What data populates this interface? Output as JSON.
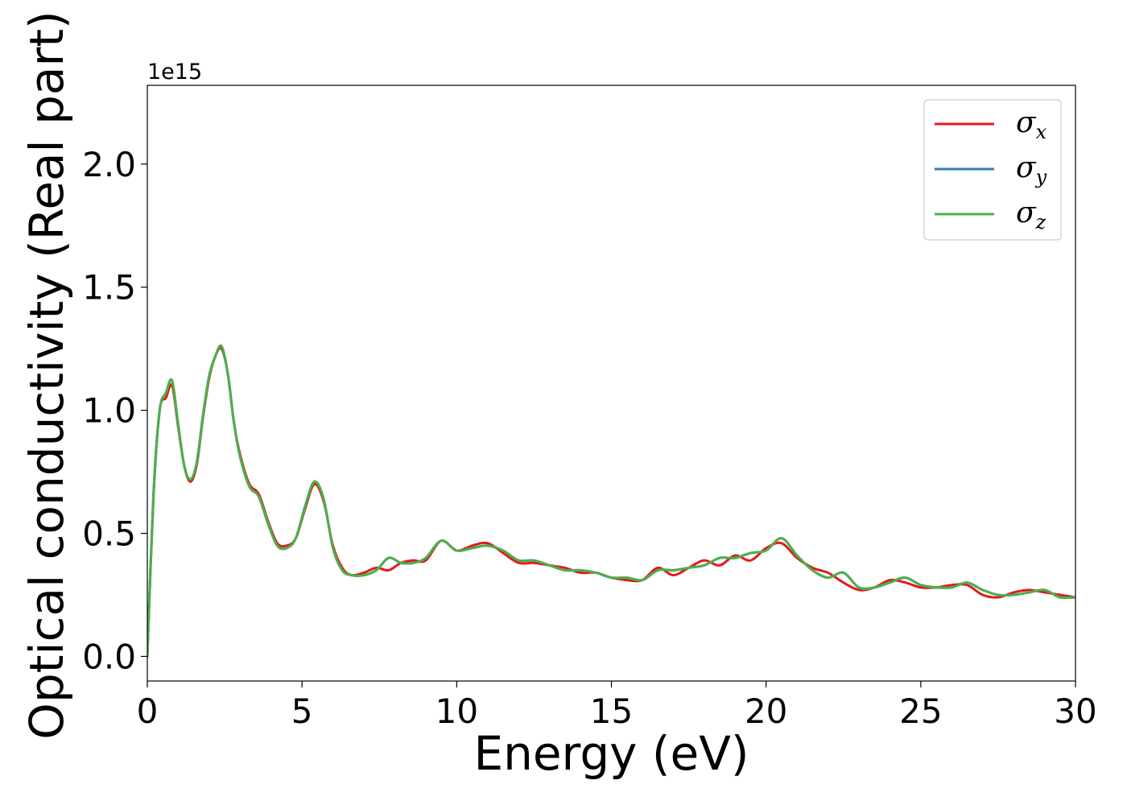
{
  "chart_data": {
    "type": "line",
    "xlabel": "Energy (eV)",
    "ylabel": "Optical conductivity (Real part)",
    "y_offset_text": "1e15",
    "xlim": [
      0,
      30
    ],
    "ylim": [
      -0.1,
      2.32
    ],
    "y_scale": 1000000000000000.0,
    "xticks": [
      0,
      5,
      10,
      15,
      20,
      25,
      30
    ],
    "xtick_labels": [
      "0",
      "5",
      "10",
      "15",
      "20",
      "25",
      "30"
    ],
    "yticks": [
      0.0,
      0.5,
      1.0,
      1.5,
      2.0
    ],
    "ytick_labels": [
      "0.0",
      "0.5",
      "1.0",
      "1.5",
      "2.0"
    ],
    "grid": false,
    "legend_position": "top-right",
    "series": [
      {
        "name": "σx",
        "symbol": "σ",
        "subscript": "x",
        "color": "#e41a1c",
        "x": [
          0,
          0.2,
          0.4,
          0.6,
          0.8,
          1.0,
          1.2,
          1.4,
          1.6,
          1.8,
          2.0,
          2.2,
          2.4,
          2.6,
          2.8,
          3.0,
          3.3,
          3.6,
          3.9,
          4.2,
          4.5,
          4.8,
          5.1,
          5.4,
          5.7,
          6.0,
          6.3,
          6.6,
          7.0,
          7.4,
          7.8,
          8.2,
          8.6,
          9.0,
          9.5,
          10.0,
          10.5,
          11.0,
          11.5,
          12.0,
          12.5,
          13.0,
          13.5,
          14.0,
          14.5,
          15.0,
          15.5,
          16.0,
          16.5,
          17.0,
          17.5,
          18.0,
          18.5,
          19.0,
          19.5,
          20.0,
          20.5,
          21.0,
          21.5,
          22.0,
          22.5,
          23.0,
          23.5,
          24.0,
          24.5,
          25.0,
          25.5,
          26.0,
          26.5,
          27.0,
          27.5,
          28.0,
          28.5,
          29.0,
          29.5,
          30.0
        ],
        "y": [
          0.0,
          0.65,
          1.0,
          1.05,
          1.1,
          0.93,
          0.77,
          0.71,
          0.78,
          0.97,
          1.13,
          1.22,
          1.25,
          1.15,
          0.95,
          0.82,
          0.7,
          0.66,
          0.55,
          0.46,
          0.45,
          0.48,
          0.6,
          0.7,
          0.63,
          0.45,
          0.36,
          0.33,
          0.34,
          0.36,
          0.35,
          0.38,
          0.39,
          0.39,
          0.47,
          0.43,
          0.45,
          0.46,
          0.42,
          0.38,
          0.38,
          0.37,
          0.36,
          0.34,
          0.34,
          0.32,
          0.31,
          0.31,
          0.36,
          0.33,
          0.36,
          0.39,
          0.37,
          0.41,
          0.39,
          0.44,
          0.46,
          0.4,
          0.36,
          0.34,
          0.3,
          0.27,
          0.28,
          0.31,
          0.3,
          0.28,
          0.28,
          0.29,
          0.29,
          0.25,
          0.24,
          0.26,
          0.27,
          0.26,
          0.25,
          0.24
        ]
      },
      {
        "name": "σy",
        "symbol": "σ",
        "subscript": "y",
        "color": "#377eb8",
        "x": [
          0,
          0.2,
          0.4,
          0.6,
          0.8,
          1.0,
          1.2,
          1.4,
          1.6,
          1.8,
          2.0,
          2.2,
          2.4,
          2.6,
          2.8,
          3.0,
          3.3,
          3.6,
          3.9,
          4.2,
          4.5,
          4.8,
          5.1,
          5.4,
          5.7,
          6.0,
          6.3,
          6.6,
          7.0,
          7.4,
          7.8,
          8.2,
          8.6,
          9.0,
          9.5,
          10.0,
          10.5,
          11.0,
          11.5,
          12.0,
          12.5,
          13.0,
          13.5,
          14.0,
          14.5,
          15.0,
          15.5,
          16.0,
          16.5,
          17.0,
          17.5,
          18.0,
          18.5,
          19.0,
          19.5,
          20.0,
          20.5,
          21.0,
          21.5,
          22.0,
          22.5,
          23.0,
          23.5,
          24.0,
          24.5,
          25.0,
          25.5,
          26.0,
          26.5,
          27.0,
          27.5,
          28.0,
          28.5,
          29.0,
          29.5,
          30.0
        ],
        "y": [
          0.0,
          0.66,
          1.0,
          1.07,
          1.12,
          0.94,
          0.77,
          0.72,
          0.79,
          0.98,
          1.14,
          1.22,
          1.26,
          1.15,
          0.95,
          0.81,
          0.69,
          0.65,
          0.54,
          0.45,
          0.44,
          0.48,
          0.61,
          0.71,
          0.64,
          0.44,
          0.35,
          0.33,
          0.33,
          0.35,
          0.4,
          0.38,
          0.38,
          0.4,
          0.47,
          0.43,
          0.44,
          0.45,
          0.43,
          0.39,
          0.39,
          0.37,
          0.35,
          0.35,
          0.34,
          0.32,
          0.32,
          0.31,
          0.35,
          0.35,
          0.36,
          0.37,
          0.4,
          0.4,
          0.42,
          0.43,
          0.48,
          0.41,
          0.35,
          0.32,
          0.34,
          0.28,
          0.28,
          0.3,
          0.32,
          0.29,
          0.28,
          0.28,
          0.3,
          0.27,
          0.25,
          0.25,
          0.26,
          0.27,
          0.24,
          0.24
        ]
      },
      {
        "name": "σz",
        "symbol": "σ",
        "subscript": "z",
        "color": "#4daf4a",
        "x": [
          0,
          0.2,
          0.4,
          0.6,
          0.8,
          1.0,
          1.2,
          1.4,
          1.6,
          1.8,
          2.0,
          2.2,
          2.4,
          2.6,
          2.8,
          3.0,
          3.3,
          3.6,
          3.9,
          4.2,
          4.5,
          4.8,
          5.1,
          5.4,
          5.7,
          6.0,
          6.3,
          6.6,
          7.0,
          7.4,
          7.8,
          8.2,
          8.6,
          9.0,
          9.5,
          10.0,
          10.5,
          11.0,
          11.5,
          12.0,
          12.5,
          13.0,
          13.5,
          14.0,
          14.5,
          15.0,
          15.5,
          16.0,
          16.5,
          17.0,
          17.5,
          18.0,
          18.5,
          19.0,
          19.5,
          20.0,
          20.5,
          21.0,
          21.5,
          22.0,
          22.5,
          23.0,
          23.5,
          24.0,
          24.5,
          25.0,
          25.5,
          26.0,
          26.5,
          27.0,
          27.5,
          28.0,
          28.5,
          29.0,
          29.5,
          30.0
        ],
        "y": [
          0.0,
          0.66,
          1.0,
          1.07,
          1.12,
          0.94,
          0.77,
          0.72,
          0.79,
          0.98,
          1.14,
          1.22,
          1.26,
          1.15,
          0.95,
          0.81,
          0.69,
          0.65,
          0.54,
          0.45,
          0.44,
          0.48,
          0.61,
          0.71,
          0.64,
          0.44,
          0.35,
          0.33,
          0.33,
          0.35,
          0.4,
          0.38,
          0.38,
          0.4,
          0.47,
          0.43,
          0.44,
          0.45,
          0.43,
          0.39,
          0.39,
          0.37,
          0.35,
          0.35,
          0.34,
          0.32,
          0.32,
          0.31,
          0.35,
          0.35,
          0.36,
          0.37,
          0.4,
          0.4,
          0.42,
          0.43,
          0.48,
          0.41,
          0.35,
          0.32,
          0.34,
          0.28,
          0.28,
          0.3,
          0.32,
          0.29,
          0.28,
          0.28,
          0.3,
          0.27,
          0.25,
          0.25,
          0.26,
          0.27,
          0.24,
          0.24
        ]
      }
    ]
  }
}
